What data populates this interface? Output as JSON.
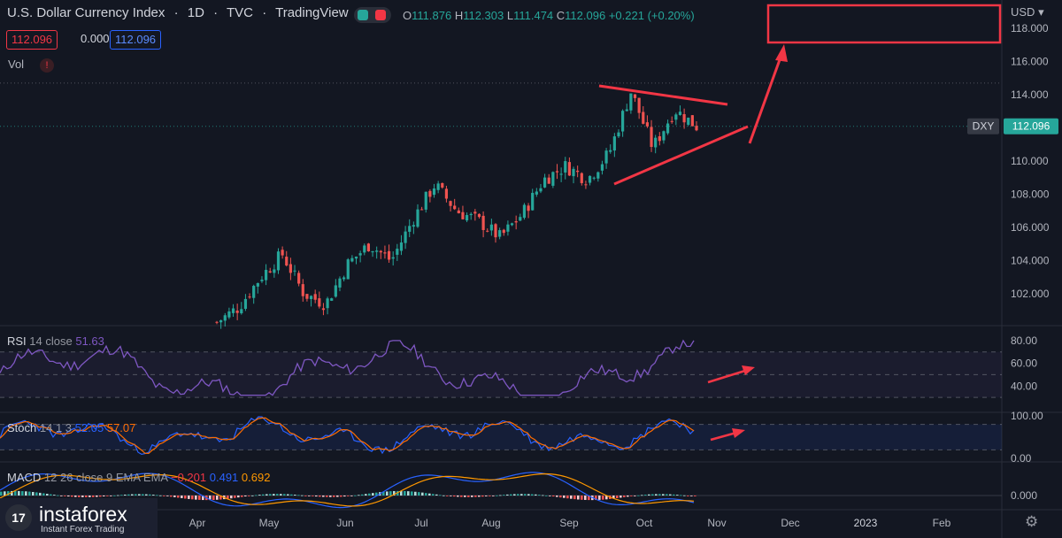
{
  "header": {
    "title": "U.S. Dollar Currency Index",
    "interval": "1D",
    "exchange": "TVC",
    "provider": "TradingView",
    "ohlc": {
      "o_label": "O",
      "o": "111.876",
      "h_label": "H",
      "h": "112.303",
      "l_label": "L",
      "l": "111.474",
      "c_label": "C",
      "c": "112.096",
      "change": "+0.221 (+0.20%)"
    },
    "bid": "112.096",
    "spread": "0.000",
    "ask": "112.096",
    "vol_label": "Vol",
    "warn_icon": "!"
  },
  "price_scale": {
    "currency": "USD",
    "ticker": "DXY",
    "last": "112.096"
  },
  "indicators": {
    "rsi": {
      "name": "RSI",
      "params": "14 close",
      "value": "51.63"
    },
    "stoch": {
      "name": "Stoch",
      "params": "14 1 3",
      "k": "52.05",
      "d": "57.07"
    },
    "macd": {
      "name": "MACD",
      "params": "12 26 close 9 EMA EMA",
      "hist": "−0.201",
      "macd": "0.491",
      "signal": "0.692"
    }
  },
  "logo": {
    "mark": "17",
    "name": "instaforex",
    "tagline": "Instant Forex Trading"
  },
  "colors": {
    "up": "#26a69a",
    "down": "#ef5350",
    "rsi": "#7e57c2",
    "stoch_k": "#2962ff",
    "stoch_d": "#ff6d00",
    "annotation": "#f23645",
    "bg": "#131722"
  },
  "chart_data": {
    "type": "candlestick",
    "title": "U.S. Dollar Currency Index",
    "x_ticks": [
      "Apr",
      "May",
      "Jun",
      "Jul",
      "Aug",
      "Sep",
      "Oct",
      "Nov",
      "Dec",
      "2023",
      "Feb"
    ],
    "y_ticks": [
      102,
      104,
      106,
      108,
      110,
      112,
      114,
      116,
      118
    ],
    "ylim": [
      100.2,
      118.9
    ],
    "last_price": 112.096,
    "reference_lines": [
      114.7,
      112.096
    ],
    "close_path": [
      {
        "x": "Mar",
        "y": 100.3
      },
      {
        "x": "Apr",
        "y": 101.2
      },
      {
        "x": "Apr",
        "y": 103.0
      },
      {
        "x": "May",
        "y": 104.4
      },
      {
        "x": "May",
        "y": 102.0
      },
      {
        "x": "Jun",
        "y": 101.4
      },
      {
        "x": "Jun",
        "y": 103.8
      },
      {
        "x": "Jun",
        "y": 105.0
      },
      {
        "x": "Jun",
        "y": 104.0
      },
      {
        "x": "Jul",
        "y": 106.5
      },
      {
        "x": "Jul",
        "y": 108.6
      },
      {
        "x": "Jul",
        "y": 107.0
      },
      {
        "x": "Aug",
        "y": 106.4
      },
      {
        "x": "Aug",
        "y": 105.4
      },
      {
        "x": "Aug",
        "y": 106.8
      },
      {
        "x": "Aug",
        "y": 108.9
      },
      {
        "x": "Sep",
        "y": 109.7
      },
      {
        "x": "Sep",
        "y": 108.9
      },
      {
        "x": "Sep",
        "y": 110.5
      },
      {
        "x": "Sep",
        "y": 114.2
      },
      {
        "x": "Oct",
        "y": 110.8
      },
      {
        "x": "Oct",
        "y": 113.1
      },
      {
        "x": "Oct",
        "y": 112.1
      }
    ],
    "rsi": {
      "levels": [
        40,
        60,
        80
      ],
      "bands": [
        30,
        70
      ],
      "last": 51.63
    },
    "stoch": {
      "levels": [
        0,
        100
      ],
      "bands": [
        20,
        80
      ],
      "k": 52.05,
      "d": 57.07
    },
    "macd": {
      "levels": [
        0
      ],
      "hist": -0.201,
      "macd": 0.491,
      "signal": 0.692
    }
  }
}
